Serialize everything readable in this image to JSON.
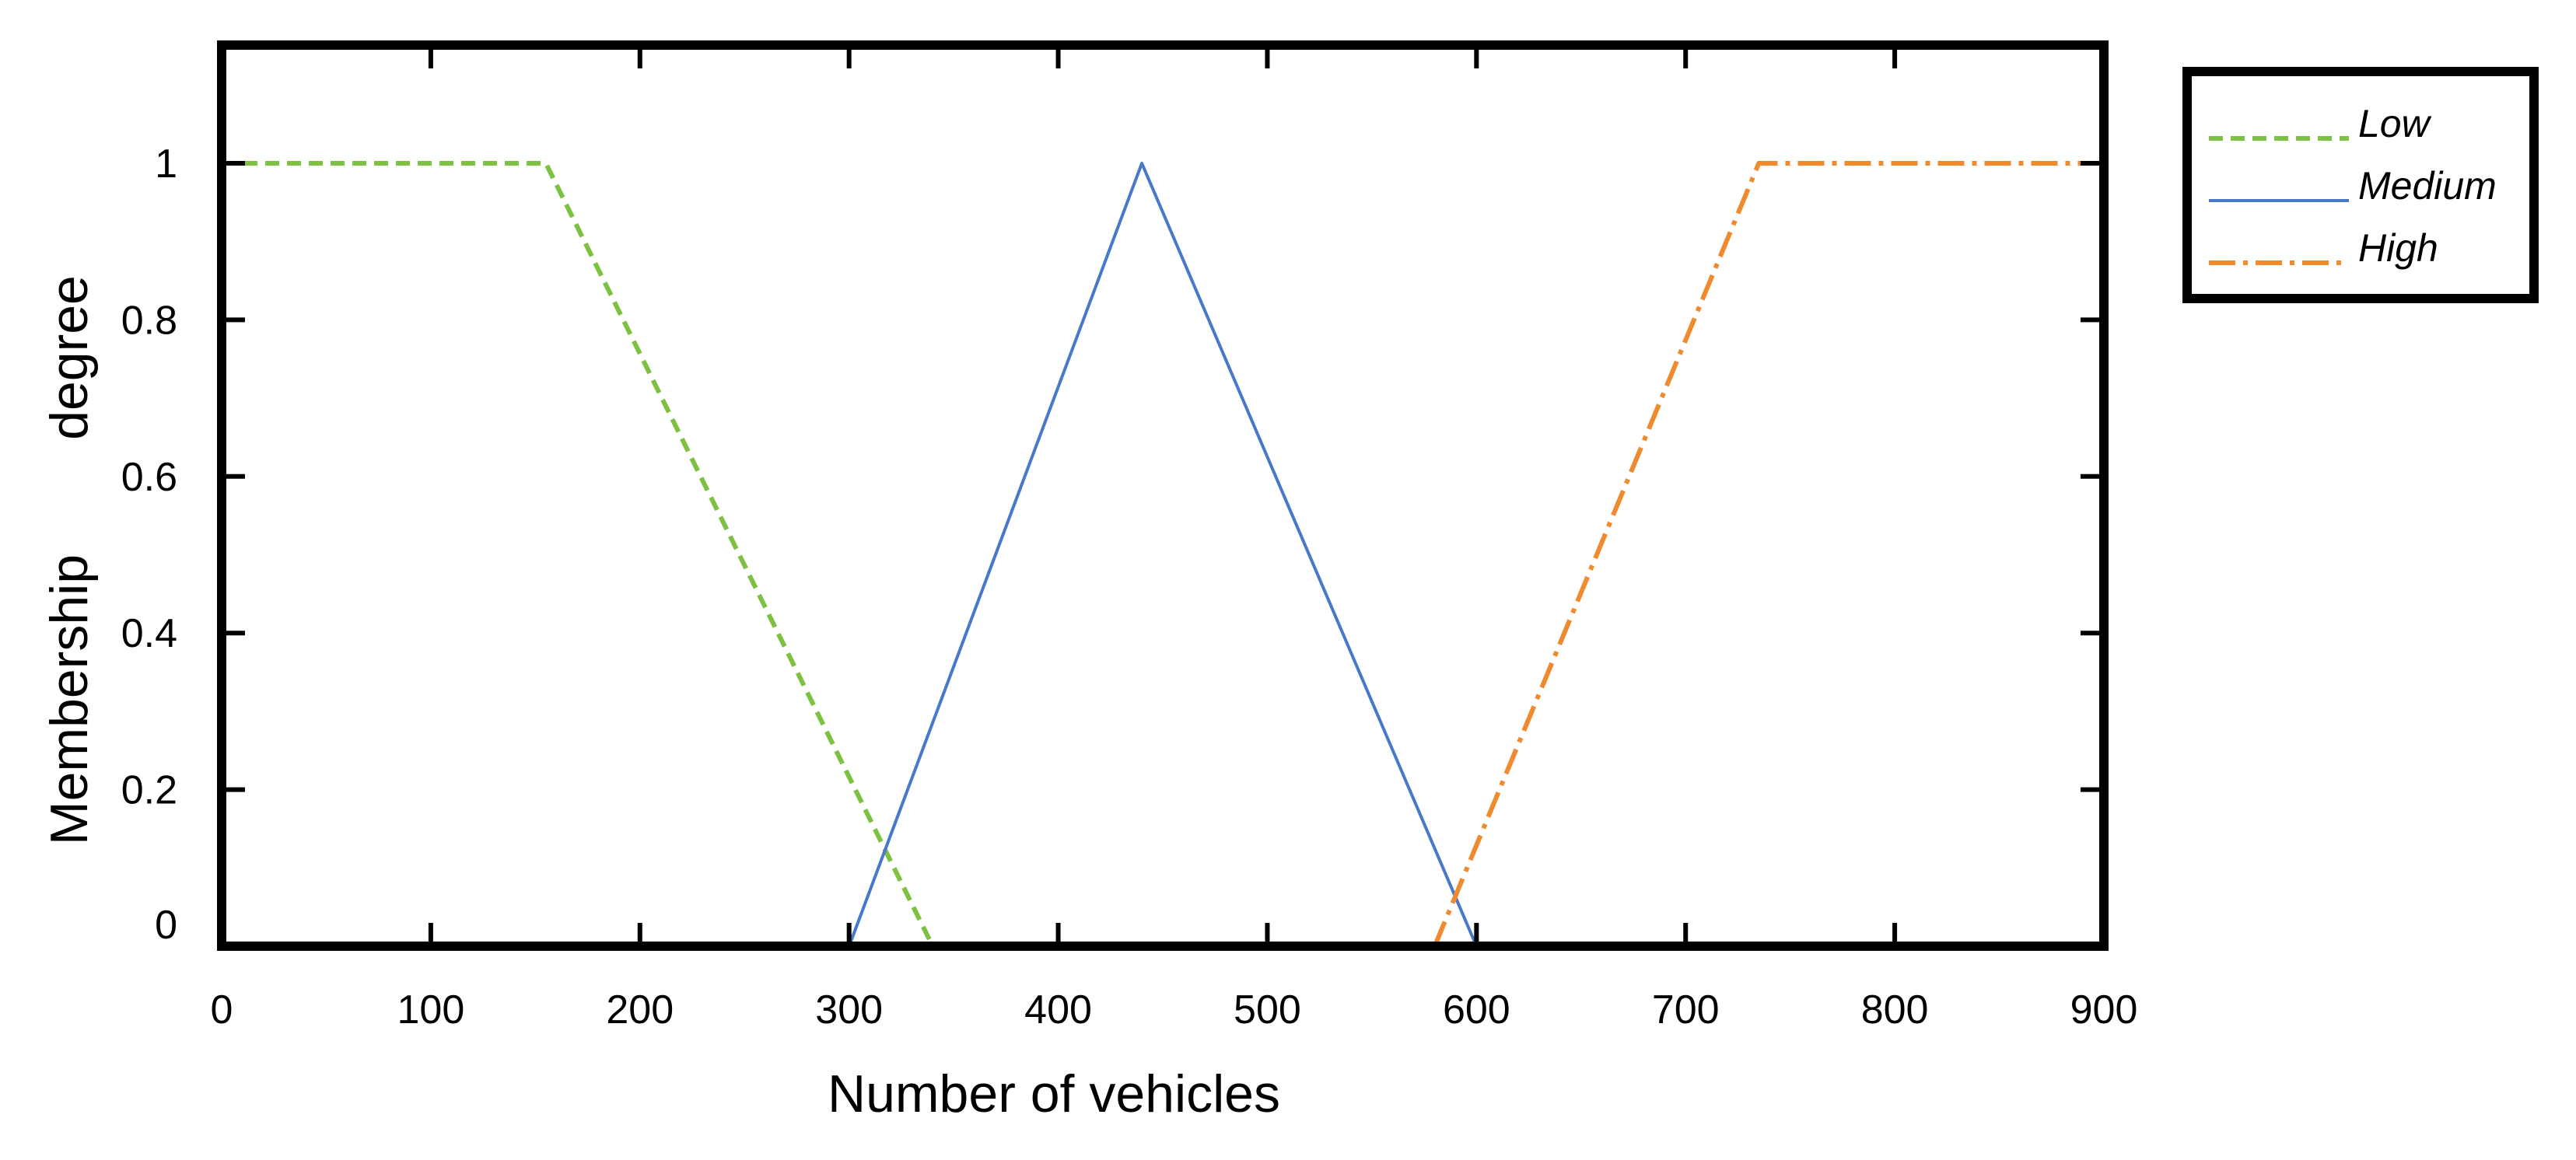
{
  "chart_data": {
    "type": "line",
    "xlabel": "Number of vehicles",
    "ylabel_words": [
      "Membership",
      "degree"
    ],
    "xlim": [
      0,
      900
    ],
    "ylim": [
      0,
      1
    ],
    "x_ticks": [
      0,
      100,
      200,
      300,
      400,
      500,
      600,
      700,
      800,
      900
    ],
    "x_tick_labels": [
      "0",
      "100",
      "200",
      "300",
      "400",
      "500",
      "600",
      "700",
      "800",
      "900"
    ],
    "y_ticks": [
      0,
      0.2,
      0.4,
      0.6,
      0.8,
      1
    ],
    "y_tick_labels": [
      "0",
      "0.2",
      "0.4",
      "0.6",
      "0.8",
      "1"
    ],
    "grid": false,
    "legend_position": "top-right outside",
    "series": [
      {
        "name": "Low",
        "color": "#7DC142",
        "dash": "dashed",
        "points": [
          [
            0,
            1
          ],
          [
            155,
            1
          ],
          [
            340,
            0
          ]
        ]
      },
      {
        "name": "Medium",
        "color": "#4A78C8",
        "dash": "solid",
        "points": [
          [
            300,
            0
          ],
          [
            440,
            1
          ],
          [
            600,
            0
          ]
        ]
      },
      {
        "name": "High",
        "color": "#F08A2E",
        "dash": "dash-dot",
        "points": [
          [
            580,
            0
          ],
          [
            735,
            1
          ],
          [
            900,
            1
          ]
        ]
      }
    ]
  }
}
